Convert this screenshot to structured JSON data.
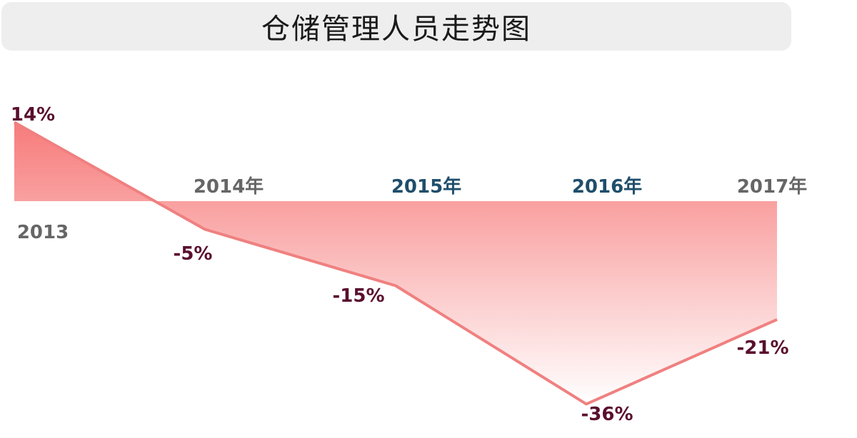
{
  "chart_data": {
    "type": "area",
    "title": "仓储管理人员走势图",
    "categories": [
      "2013",
      "2014年",
      "2015年",
      "2016年",
      "2017年"
    ],
    "values": [
      14,
      -5,
      -15,
      -36,
      -21
    ],
    "value_labels": [
      "14%",
      "-5%",
      "-15%",
      "-36%",
      "-21%"
    ],
    "unit": "%",
    "ylim": [
      -36,
      14
    ],
    "grid": false,
    "legend": "none",
    "colors": {
      "line": "#f08080",
      "fill_top": "#f77b7b",
      "fill_bottom": "#ffffff",
      "value_label": "#5a0f2e",
      "category_gray": "#666666",
      "category_blue": "#1f4e6b"
    }
  }
}
